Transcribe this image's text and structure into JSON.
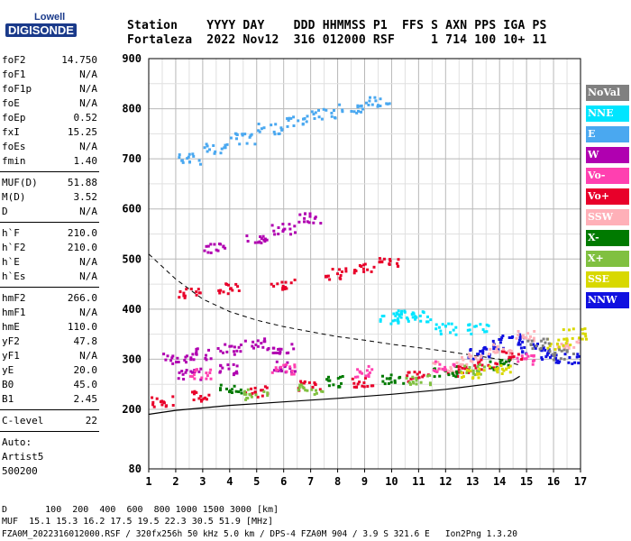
{
  "logo": {
    "top": "Lowell",
    "main": "DIGISONDE"
  },
  "header": {
    "line1": "Station    YYYY DAY    DDD HHMMSS P1  FFS S AXN PPS IGA PS",
    "line2": "Fortaleza  2022 Nov12  316 012000 RSF     1 714 100 10+ 11"
  },
  "params": [
    {
      "label": "foF2",
      "value": "14.750"
    },
    {
      "label": "foF1",
      "value": "N/A"
    },
    {
      "label": "foF1p",
      "value": "N/A"
    },
    {
      "label": "foE",
      "value": "N/A"
    },
    {
      "label": "foEp",
      "value": "0.52"
    },
    {
      "label": "fxI",
      "value": "15.25"
    },
    {
      "label": "foEs",
      "value": "N/A"
    },
    {
      "label": "fmin",
      "value": "1.40"
    },
    {
      "label": "MUF(D)",
      "value": "51.88"
    },
    {
      "label": "M(D)",
      "value": "3.52"
    },
    {
      "label": "D",
      "value": "N/A"
    },
    {
      "label": "h`F",
      "value": "210.0"
    },
    {
      "label": "h`F2",
      "value": "210.0"
    },
    {
      "label": "h`E",
      "value": "N/A"
    },
    {
      "label": "h`Es",
      "value": "N/A"
    },
    {
      "label": "hmF2",
      "value": "266.0"
    },
    {
      "label": "hmF1",
      "value": "N/A"
    },
    {
      "label": "hmE",
      "value": "110.0"
    },
    {
      "label": "yF2",
      "value": "47.8"
    },
    {
      "label": "yF1",
      "value": "N/A"
    },
    {
      "label": "yE",
      "value": "20.0"
    },
    {
      "label": "B0",
      "value": "45.0"
    },
    {
      "label": "B1",
      "value": "2.45"
    },
    {
      "label": "C-level",
      "value": "22"
    }
  ],
  "auto": {
    "line1": "Auto:",
    "line2": "Artist5",
    "line3": "500200"
  },
  "legend": [
    {
      "label": "NoVal",
      "bg": "#808080",
      "fg": "#ffffff"
    },
    {
      "label": "NNE",
      "bg": "#00e5ff",
      "fg": "#ffffff"
    },
    {
      "label": "E",
      "bg": "#4aa8f0",
      "fg": "#ffffff"
    },
    {
      "label": "W",
      "bg": "#b000b0",
      "fg": "#ffffff"
    },
    {
      "label": "Vo-",
      "bg": "#ff40b0",
      "fg": "#ffffff"
    },
    {
      "label": "Vo+",
      "bg": "#e8002a",
      "fg": "#ffffff"
    },
    {
      "label": "SSW",
      "bg": "#ffb0b8",
      "fg": "#ffffff"
    },
    {
      "label": "X-",
      "bg": "#007a00",
      "fg": "#ffffff"
    },
    {
      "label": "X+",
      "bg": "#80c040",
      "fg": "#ffffff"
    },
    {
      "label": "SSE",
      "bg": "#d8d800",
      "fg": "#ffffff"
    },
    {
      "label": "NNW",
      "bg": "#1010e0",
      "fg": "#ffffff"
    }
  ],
  "footer": {
    "line1": "D       100  200  400  600  800 1000 1500 3000 [km]",
    "line2": "MUF  15.1 15.3 16.2 17.5 19.5 22.3 30.5 51.9 [MHz]",
    "line3": "FZA0M_2022316012000.RSF / 320fx256h 50 kHz 5.0 km / DPS-4 FZA0M 904 / 3.9 S 321.6 E   Ion2Png 1.3.20"
  },
  "chart_data": {
    "type": "scatter",
    "xlim": [
      1,
      17
    ],
    "ylim": [
      80,
      900
    ],
    "xticks": [
      1,
      2,
      3,
      4,
      5,
      6,
      7,
      8,
      9,
      10,
      11,
      12,
      13,
      14,
      15,
      16,
      17
    ],
    "yticks": [
      80,
      200,
      300,
      400,
      500,
      600,
      700,
      800,
      900
    ],
    "grid": true,
    "legend_position": "right",
    "series": [
      {
        "name": "Vo+",
        "color": "#e8002a",
        "points": [
          [
            1.5,
            215
          ],
          [
            3,
            225
          ],
          [
            5,
            235
          ],
          [
            7,
            245
          ],
          [
            9,
            255
          ],
          [
            11,
            265
          ],
          [
            12.5,
            275
          ],
          [
            13.5,
            290
          ],
          [
            14.5,
            310
          ],
          [
            2.5,
            430
          ],
          [
            4,
            440
          ],
          [
            6,
            450
          ],
          [
            8,
            470
          ],
          [
            9,
            480
          ],
          [
            10,
            495
          ]
        ]
      },
      {
        "name": "W",
        "color": "#b000b0",
        "points": [
          [
            2,
            300
          ],
          [
            3,
            310
          ],
          [
            4,
            320
          ],
          [
            5,
            330
          ],
          [
            6,
            320
          ],
          [
            2.5,
            270
          ],
          [
            4,
            280
          ],
          [
            6,
            285
          ],
          [
            3.5,
            520
          ],
          [
            5,
            540
          ],
          [
            6,
            560
          ],
          [
            7,
            580
          ]
        ]
      },
      {
        "name": "E",
        "color": "#4aa8f0",
        "points": [
          [
            2.5,
            700
          ],
          [
            3.5,
            720
          ],
          [
            4.5,
            740
          ],
          [
            5.5,
            760
          ],
          [
            6.5,
            775
          ],
          [
            7.5,
            790
          ],
          [
            8.5,
            800
          ],
          [
            9.5,
            815
          ]
        ]
      },
      {
        "name": "NNW",
        "color": "#1010e0",
        "points": [
          [
            13.2,
            310
          ],
          [
            13.8,
            330
          ],
          [
            14.5,
            340
          ],
          [
            15.2,
            320
          ],
          [
            16,
            310
          ],
          [
            16.5,
            300
          ]
        ]
      },
      {
        "name": "SSW",
        "color": "#ffb0b8",
        "points": [
          [
            12,
            285
          ],
          [
            13,
            300
          ],
          [
            14,
            320
          ],
          [
            15,
            345
          ],
          [
            16.5,
            330
          ]
        ]
      },
      {
        "name": "X-",
        "color": "#007a00",
        "points": [
          [
            4,
            240
          ],
          [
            8,
            255
          ],
          [
            10,
            262
          ],
          [
            12,
            275
          ],
          [
            14,
            290
          ]
        ]
      },
      {
        "name": "NNE",
        "color": "#00e5ff",
        "points": [
          [
            10,
            380
          ],
          [
            10.5,
            390
          ],
          [
            11,
            385
          ],
          [
            13.2,
            360
          ],
          [
            12,
            360
          ]
        ]
      },
      {
        "name": "Vo-",
        "color": "#ff40b0",
        "points": [
          [
            3,
            270
          ],
          [
            6,
            280
          ],
          [
            9,
            275
          ],
          [
            12,
            285
          ],
          [
            15,
            300
          ]
        ]
      },
      {
        "name": "X+",
        "color": "#80c040",
        "points": [
          [
            5,
            230
          ],
          [
            7,
            240
          ],
          [
            11,
            260
          ],
          [
            13,
            280
          ]
        ]
      },
      {
        "name": "SSE",
        "color": "#d8d800",
        "points": [
          [
            13,
            270
          ],
          [
            14,
            280
          ],
          [
            16.2,
            330
          ],
          [
            16.8,
            350
          ]
        ]
      },
      {
        "name": "NoVal",
        "color": "#808080",
        "points": [
          [
            15.5,
            330
          ],
          [
            16.3,
            310
          ]
        ]
      }
    ],
    "profile_solid": [
      [
        1,
        190
      ],
      [
        2,
        198
      ],
      [
        4,
        208
      ],
      [
        6,
        215
      ],
      [
        8,
        222
      ],
      [
        10,
        230
      ],
      [
        12,
        240
      ],
      [
        13.5,
        250
      ],
      [
        14.5,
        258
      ],
      [
        14.75,
        266
      ]
    ],
    "profile_dashed": [
      [
        1,
        510
      ],
      [
        2,
        460
      ],
      [
        3,
        420
      ],
      [
        4,
        395
      ],
      [
        5,
        378
      ],
      [
        6,
        365
      ],
      [
        7,
        355
      ],
      [
        8,
        345
      ],
      [
        9,
        338
      ],
      [
        10,
        330
      ],
      [
        11,
        323
      ],
      [
        12,
        316
      ],
      [
        13,
        308
      ],
      [
        14,
        300
      ],
      [
        14.75,
        288
      ]
    ]
  }
}
